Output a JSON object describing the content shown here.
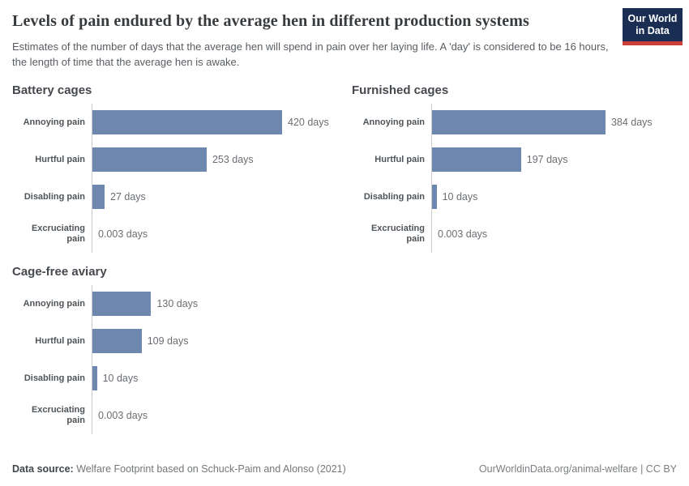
{
  "header": {
    "title": "Levels of pain endured by the average hen in different production systems",
    "subtitle": "Estimates of the number of days that the average hen will spend in pain over her laying life. A 'day' is considered to be 16 hours, the length of time that the average hen is awake.",
    "logo": {
      "line1": "Our World",
      "line2": "in Data"
    }
  },
  "colors": {
    "bar": "#6d87ae",
    "axis": "#cccccc",
    "logo_background": "#1a2e54",
    "logo_underline": "#cc3e38"
  },
  "chart_data": [
    {
      "type": "bar",
      "title": "Battery cages",
      "orientation": "horizontal",
      "categories": [
        "Annoying pain",
        "Hurtful pain",
        "Disabling pain",
        "Excruciating pain"
      ],
      "values": [
        420,
        253,
        27,
        0.003
      ],
      "value_labels": [
        "420 days",
        "253 days",
        "27 days",
        "0.003 days"
      ],
      "xlabel": "",
      "ylabel": "",
      "xlim": [
        0,
        420
      ],
      "grid": false,
      "legend": false
    },
    {
      "type": "bar",
      "title": "Furnished cages",
      "orientation": "horizontal",
      "categories": [
        "Annoying pain",
        "Hurtful pain",
        "Disabling pain",
        "Excruciating pain"
      ],
      "values": [
        384,
        197,
        10,
        0.003
      ],
      "value_labels": [
        "384 days",
        "197 days",
        "10 days",
        "0.003 days"
      ],
      "xlabel": "",
      "ylabel": "",
      "xlim": [
        0,
        420
      ],
      "grid": false,
      "legend": false
    },
    {
      "type": "bar",
      "title": "Cage-free aviary",
      "orientation": "horizontal",
      "categories": [
        "Annoying pain",
        "Hurtful pain",
        "Disabling pain",
        "Excruciating pain"
      ],
      "values": [
        130,
        109,
        10,
        0.003
      ],
      "value_labels": [
        "130 days",
        "109 days",
        "10 days",
        "0.003 days"
      ],
      "xlabel": "",
      "ylabel": "",
      "xlim": [
        0,
        420
      ],
      "grid": false,
      "legend": false
    }
  ],
  "footer": {
    "source_label": "Data source:",
    "source_text": " Welfare Footprint based on Schuck-Paim and Alonso (2021)",
    "credit": "OurWorldinData.org/animal-welfare | CC BY"
  }
}
